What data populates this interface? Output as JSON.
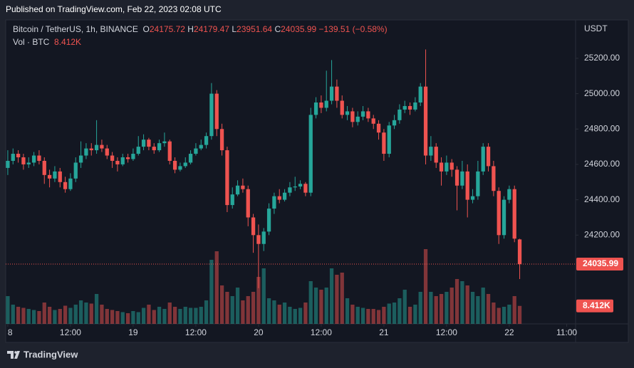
{
  "published": "Published on TradingView.com, Feb 22, 2023 02:08 UTC",
  "footer": "TradingView",
  "chart_data": {
    "type": "candlestick",
    "title": "Bitcoin / TetherUS, 1h, BINANCE",
    "legend_keys": [
      "O",
      "H",
      "L",
      "C"
    ],
    "change": "−139.51 (−0.58%)",
    "y_axis_label": "USDT",
    "up_color": "#26a69a",
    "down_color": "#ef5350",
    "open": [
      24580,
      24620,
      24660,
      24640,
      24600,
      24610,
      24650,
      24620,
      24540,
      24520,
      24560,
      24500,
      24460,
      24520,
      24610,
      24650,
      24690,
      24680,
      24710,
      24690,
      24650,
      24620,
      24600,
      24640,
      24630,
      24660,
      24700,
      24740,
      24700,
      24680,
      24720,
      24730,
      24620,
      24570,
      24590,
      24610,
      24660,
      24690,
      24710,
      24760,
      25000,
      24800,
      24680,
      24370,
      24430,
      24480,
      24460,
      24300,
      24200,
      24150,
      24220,
      24350,
      24420,
      24400,
      24440,
      24470,
      24475,
      24490,
      24440,
      24880,
      24950,
      24920,
      24960,
      25040,
      24960,
      24880,
      24900,
      24840,
      24870,
      24900,
      24860,
      24830,
      24780,
      24660,
      24820,
      24850,
      24910,
      24930,
      24910,
      24950,
      25040,
      24650,
      24700,
      24610,
      24560,
      24610,
      24570,
      24480,
      24560,
      24400,
      24420,
      24560,
      24700,
      24590,
      24450,
      24200,
      24400,
      24460,
      24175.72
    ],
    "high": [
      24680,
      24690,
      24680,
      24660,
      24640,
      24670,
      24680,
      24640,
      24570,
      24590,
      24580,
      24530,
      24550,
      24640,
      24730,
      24720,
      24720,
      24850,
      24740,
      24710,
      24670,
      24640,
      24660,
      24660,
      24690,
      24760,
      24770,
      24750,
      24720,
      24740,
      24780,
      24740,
      24640,
      24610,
      24640,
      24680,
      24720,
      24740,
      24780,
      25060,
      25020,
      24830,
      24700,
      24470,
      24510,
      24520,
      24480,
      24320,
      24260,
      24240,
      24380,
      24440,
      24460,
      24460,
      24500,
      24530,
      24510,
      24500,
      24920,
      24980,
      24990,
      25130,
      25190,
      25080,
      24990,
      24930,
      24920,
      24900,
      24930,
      24920,
      24880,
      24850,
      24800,
      24840,
      24880,
      24940,
      24960,
      24950,
      24980,
      25060,
      25250,
      24760,
      24720,
      24640,
      24650,
      24630,
      24590,
      24620,
      24600,
      24460,
      24620,
      24720,
      24720,
      24620,
      24470,
      24420,
      24480,
      24480,
      24179.47
    ],
    "low": [
      24540,
      24600,
      24610,
      24570,
      24580,
      24590,
      24600,
      24490,
      24470,
      24500,
      24470,
      24440,
      24450,
      24500,
      24580,
      24630,
      24650,
      24660,
      24670,
      24630,
      24580,
      24560,
      24590,
      24610,
      24620,
      24650,
      24680,
      24680,
      24660,
      24670,
      24700,
      24600,
      24550,
      24560,
      24580,
      24600,
      24650,
      24680,
      24690,
      24740,
      24760,
      24650,
      24330,
      24350,
      24420,
      24440,
      24250,
      24100,
      23900,
      24110,
      24200,
      24320,
      24380,
      24390,
      24420,
      24450,
      24460,
      24420,
      24420,
      24860,
      24890,
      24900,
      24940,
      24920,
      24860,
      24850,
      24810,
      24820,
      24850,
      24840,
      24800,
      24740,
      24620,
      24640,
      24800,
      24830,
      24890,
      24880,
      24900,
      24930,
      24600,
      24620,
      24580,
      24480,
      24540,
      24530,
      24340,
      24460,
      24300,
      24380,
      24400,
      24540,
      24560,
      24420,
      24150,
      24180,
      24380,
      24160,
      23951.64
    ],
    "close": [
      24620,
      24660,
      24640,
      24600,
      24610,
      24650,
      24620,
      24540,
      24520,
      24560,
      24500,
      24460,
      24520,
      24610,
      24650,
      24690,
      24680,
      24710,
      24690,
      24650,
      24620,
      24600,
      24640,
      24630,
      24660,
      24700,
      24740,
      24700,
      24680,
      24720,
      24730,
      24620,
      24570,
      24590,
      24610,
      24660,
      24690,
      24710,
      24760,
      25000,
      24800,
      24680,
      24370,
      24430,
      24480,
      24460,
      24300,
      24200,
      24150,
      24220,
      24350,
      24420,
      24400,
      24440,
      24470,
      24475,
      24490,
      24440,
      24880,
      24950,
      24920,
      24960,
      25040,
      24960,
      24880,
      24900,
      24840,
      24870,
      24900,
      24860,
      24830,
      24780,
      24660,
      24820,
      24850,
      24910,
      24930,
      24910,
      24950,
      25040,
      24650,
      24700,
      24610,
      24560,
      24610,
      24570,
      24480,
      24560,
      24400,
      24420,
      24560,
      24700,
      24590,
      24450,
      24200,
      24400,
      24460,
      24180,
      24035.99
    ],
    "volume": {
      "name": "Vol · BTC",
      "values": [
        13000,
        9000,
        8000,
        7500,
        7000,
        6500,
        6000,
        10000,
        8000,
        6500,
        7000,
        8500,
        7500,
        9000,
        11000,
        10000,
        9500,
        14000,
        9000,
        7000,
        6500,
        6000,
        5500,
        5000,
        6000,
        5500,
        7500,
        9000,
        6500,
        8000,
        7000,
        10000,
        8000,
        7000,
        8000,
        7500,
        7500,
        8000,
        11000,
        30000,
        34000,
        18000,
        15000,
        13000,
        17000,
        11000,
        13000,
        15000,
        22000,
        26000,
        12000,
        11000,
        9000,
        10000,
        8000,
        7000,
        7500,
        10000,
        20000,
        17000,
        16000,
        17000,
        26000,
        23000,
        24000,
        12000,
        9000,
        8000,
        7500,
        7000,
        7000,
        6500,
        8000,
        9500,
        10000,
        12000,
        16000,
        8000,
        9000,
        15000,
        35000,
        15000,
        13000,
        14000,
        15000,
        17000,
        21000,
        20000,
        18000,
        15000,
        13000,
        17000,
        14000,
        10000,
        7500,
        8000,
        9000,
        13000,
        8412
      ],
      "last_value_label": "8.412K"
    },
    "ylim": [
      23698,
      25417
    ],
    "yticks": [
      {
        "value": 24200,
        "label": "24200.00"
      },
      {
        "value": 24400,
        "label": "24400.00"
      },
      {
        "value": 24600,
        "label": "24600.00"
      },
      {
        "value": 24800,
        "label": "24800.00"
      },
      {
        "value": 25000,
        "label": "25000.00"
      },
      {
        "value": 25200,
        "label": "25200.00"
      }
    ],
    "xlim": [
      -0.4,
      108.7
    ],
    "xticks": [
      {
        "value": 0,
        "label": "8"
      },
      {
        "value": 12,
        "label": "12:00"
      },
      {
        "value": 24,
        "label": "19"
      },
      {
        "value": 36,
        "label": "12:00"
      },
      {
        "value": 48,
        "label": "20"
      },
      {
        "value": 60,
        "label": "12:00"
      },
      {
        "value": 72,
        "label": "21"
      },
      {
        "value": 84,
        "label": "12:00"
      },
      {
        "value": 96,
        "label": "22"
      },
      {
        "value": 107,
        "label": "11:00"
      }
    ],
    "grid": false
  }
}
